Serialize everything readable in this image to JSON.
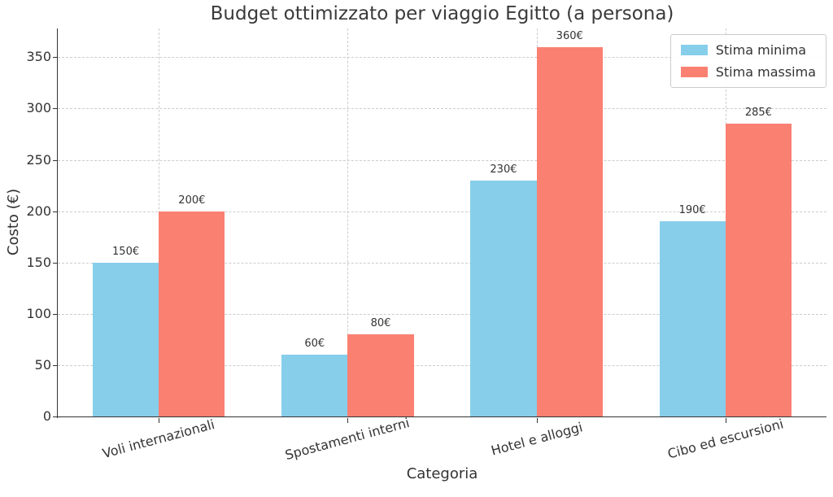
{
  "chart_data": {
    "type": "bar",
    "title": "Budget ottimizzato per viaggio Egitto (a persona)",
    "xlabel": "Categoria",
    "ylabel": "Costo (€)",
    "categories": [
      "Voli internazionali",
      "Spostamenti interni",
      "Hotel e alloggi",
      "Cibo ed escursioni"
    ],
    "series": [
      {
        "name": "Stima minima",
        "color": "#87CEEB",
        "values": [
          150,
          60,
          230,
          190
        ]
      },
      {
        "name": "Stima massima",
        "color": "#FA8072",
        "values": [
          200,
          80,
          360,
          285
        ]
      }
    ],
    "value_labels": [
      [
        "150€",
        "60€",
        "230€",
        "190€"
      ],
      [
        "200€",
        "80€",
        "360€",
        "285€"
      ]
    ],
    "yticks": [
      0,
      50,
      100,
      150,
      200,
      250,
      300,
      350
    ],
    "ylim": [
      0,
      378
    ],
    "grid": {
      "style": "dashed",
      "color": "#cccccc",
      "axisbelow": true,
      "vertical": true,
      "horizontal": true
    },
    "legend": {
      "position": "upper right"
    },
    "colors": {
      "spine": "#333333",
      "text": "#333333",
      "background": "#ffffff"
    }
  }
}
